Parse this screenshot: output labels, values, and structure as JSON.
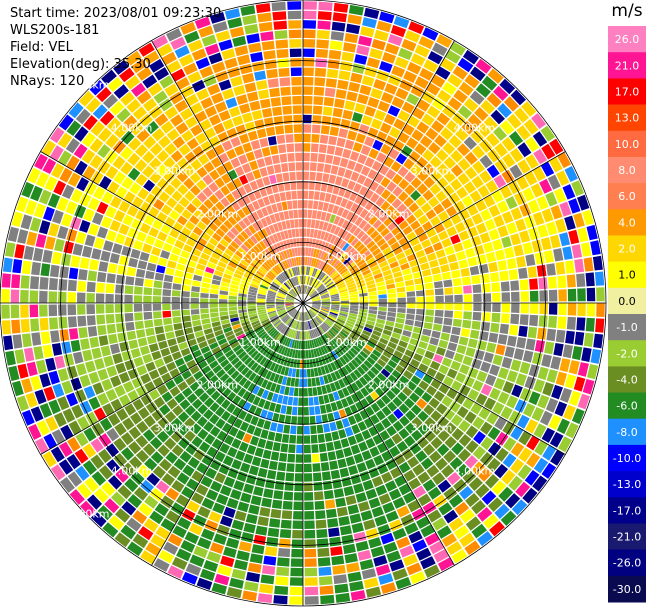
{
  "header": {
    "start_time": "Start time: 2023/08/01 09:23:30",
    "instrument": "WLS200s-181",
    "field": "Field: VEL",
    "elevation": "Elevation(deg): 35.30",
    "nrays": "NRays: 120"
  },
  "chart_data": {
    "type": "heatmap",
    "projection": "polar-ppi",
    "field": "VEL",
    "elevation_deg": 35.3,
    "n_rays": 120,
    "range_rings_km": [
      1,
      2,
      3,
      4,
      5
    ],
    "ring_labels": [
      "1.00km",
      "2.00km",
      "3.00km",
      "4.00km",
      "5.00km"
    ],
    "max_range_km": 5.0,
    "spokes_deg": [
      0,
      30,
      60,
      90,
      120,
      150,
      180,
      210,
      240,
      270,
      300,
      330
    ],
    "legend": {
      "unit": "m/s",
      "ticks": [
        "26.0",
        "21.0",
        "17.0",
        "13.0",
        "10.0",
        "8.0",
        "6.0",
        "4.0",
        "2.0",
        "1.0",
        "0.0",
        "-1.0",
        "-2.0",
        "-4.0",
        "-6.0",
        "-8.0",
        "-10.0",
        "-13.0",
        "-17.0",
        "-21.0",
        "-26.0",
        "-30.0"
      ],
      "colors": [
        "#ff80c0",
        "#ff1493",
        "#ff0000",
        "#ff4500",
        "#ff6a40",
        "#ff8c70",
        "#ff7f50",
        "#ff9900",
        "#ffd700",
        "#ffff00",
        "#f0f0a0",
        "#808080",
        "#9acd32",
        "#6b8e23",
        "#228b22",
        "#1e90ff",
        "#0000ff",
        "#0000cd",
        "#00008b",
        "#191970",
        "#000080",
        "#0a0a50"
      ]
    },
    "velocity_pattern": {
      "north_sector": "positive 6 to 10 m/s",
      "south_sector": "negative -6 to -10 m/s",
      "near_center": "around 0 m/s",
      "outer_ranges": "noisy mixed values"
    }
  }
}
